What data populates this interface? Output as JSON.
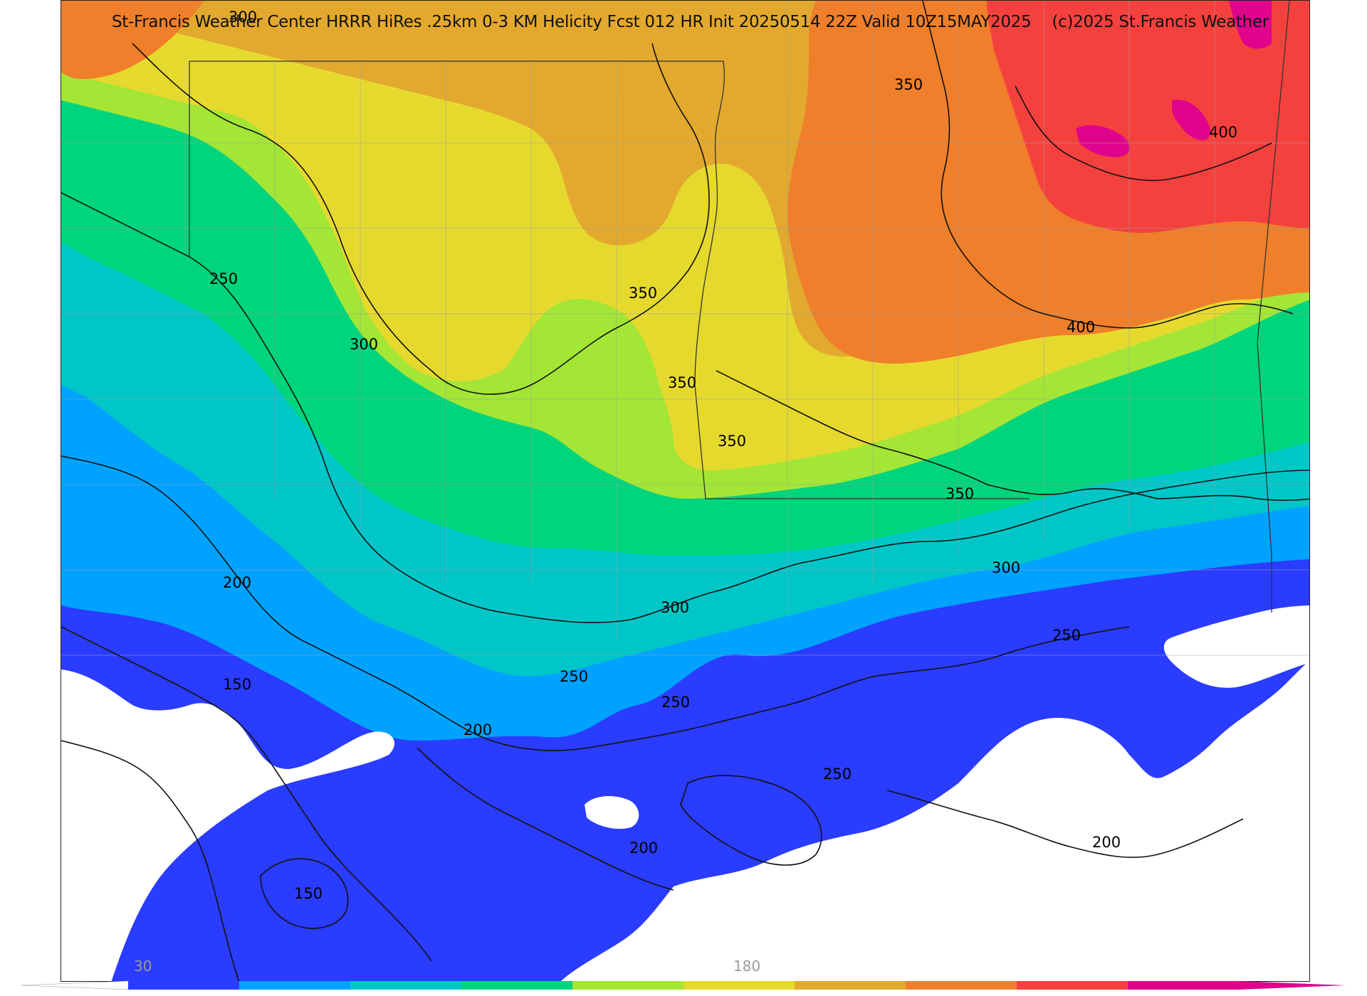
{
  "header": {
    "title": "St-Francis Weather Center HRRR HiRes .25km 0-3 KM Helicity Fcst 012 HR Init 20250514 22Z  Valid 10Z15MAY2025",
    "copyright": "(c)2025 St.Francis Weather"
  },
  "colorbar": {
    "tick_low": "30",
    "tick_mid": "180",
    "colors": [
      "#ffffff",
      "#2a3cff",
      "#00a2ff",
      "#00c6c8",
      "#00d47c",
      "#a3e635",
      "#e6d92e",
      "#e3a92e",
      "#ef7f2a",
      "#f5413e",
      "#e0048c"
    ]
  },
  "contour_labels": [
    "300",
    "350",
    "400",
    "250",
    "300",
    "350",
    "350",
    "350",
    "400",
    "350",
    "300",
    "200",
    "300",
    "250",
    "150",
    "250",
    "250",
    "200",
    "250",
    "200",
    "150",
    "200"
  ],
  "map_colors": {
    "white": "#ffffff",
    "blue": "#2a3cff",
    "lightblue": "#00a2ff",
    "cyan": "#00c6c8",
    "green": "#00d47c",
    "lime": "#a3e635",
    "yellow": "#e6d92e",
    "gold": "#e3a92e",
    "orange": "#ef7f2a",
    "red": "#f5413e",
    "magenta": "#e0048c"
  }
}
